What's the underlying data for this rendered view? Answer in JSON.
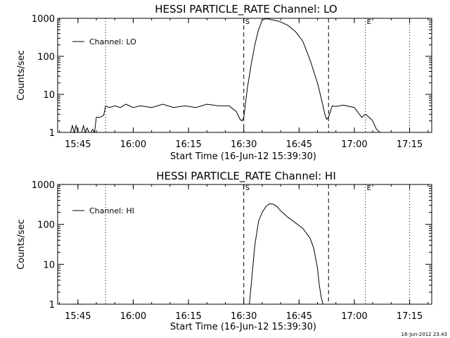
{
  "footer_timestamp": "16-Jun-2012 23:43",
  "chart_data": [
    {
      "type": "line",
      "title": "HESSI PARTICLE_RATE Channel: LO",
      "xlabel": "Start Time (16-Jun-12 15:39:30)",
      "ylabel": "Counts/sec",
      "yscale": "log",
      "ylim": [
        1,
        1000
      ],
      "xlim": [
        "15:39:30",
        "17:21:00"
      ],
      "xticks": [
        "15:45",
        "16:00",
        "16:15",
        "16:30",
        "16:45",
        "17:00",
        "17:15"
      ],
      "yticks": [
        "1",
        "10",
        "100",
        "1000"
      ],
      "legend": {
        "label": "Channel: LO",
        "position": "top-left"
      },
      "markers": [
        {
          "label": "S",
          "time": "16:30:00",
          "style": "dashed"
        },
        {
          "label": "",
          "time": "16:53:00",
          "style": "dashed"
        },
        {
          "label": "",
          "time": "15:52:30",
          "style": "dotted"
        },
        {
          "label": "E",
          "time": "17:03:00",
          "style": "dotted"
        },
        {
          "label": "",
          "time": "17:15:00",
          "style": "dotted"
        }
      ],
      "series": [
        {
          "name": "Channel: LO",
          "x": [
            "15:42:30",
            "15:43:00",
            "15:43:30",
            "15:44:00",
            "15:44:30",
            "15:45:00",
            "15:45:30",
            "15:46:00",
            "15:46:30",
            "15:47:00",
            "15:47:30",
            "15:48:00",
            "15:48:30",
            "15:49:00",
            "15:49:30",
            "15:50:00",
            "15:51:00",
            "15:52:00",
            "15:52:30",
            "15:53:30",
            "15:55:00",
            "15:56:30",
            "15:58:00",
            "16:00:00",
            "16:02:00",
            "16:05:00",
            "16:08:00",
            "16:11:00",
            "16:14:00",
            "16:17:00",
            "16:20:00",
            "16:23:00",
            "16:26:00",
            "16:28:00",
            "16:29:00",
            "16:29:30",
            "16:30:00",
            "16:31:00",
            "16:32:00",
            "16:33:00",
            "16:34:00",
            "16:35:00",
            "16:36:00",
            "16:37:00",
            "16:38:00",
            "16:39:00",
            "16:40:00",
            "16:42:00",
            "16:44:00",
            "16:46:00",
            "16:48:00",
            "16:49:00",
            "16:50:00",
            "16:51:00",
            "16:52:00",
            "16:52:30",
            "16:53:00",
            "16:54:00",
            "16:55:00",
            "16:57:00",
            "17:00:00",
            "17:02:00",
            "17:03:00",
            "17:04:00",
            "17:05:00",
            "17:06:00",
            "17:07:00",
            "17:08:00"
          ],
          "y": [
            1,
            1,
            1.5,
            1,
            1.5,
            1,
            1,
            1,
            1.5,
            1,
            1.3,
            1,
            1,
            1.2,
            1,
            2.5,
            2.5,
            2.8,
            5,
            4.5,
            5,
            4.5,
            5.5,
            4.5,
            5,
            4.5,
            5.5,
            4.5,
            5,
            4.5,
            5.5,
            5,
            5,
            3.5,
            2.2,
            2,
            2.5,
            15,
            60,
            200,
            500,
            900,
            980,
            950,
            900,
            860,
            800,
            650,
            450,
            250,
            80,
            40,
            20,
            8,
            3,
            2.2,
            2.5,
            5,
            4.8,
            5.2,
            4.5,
            2.5,
            3,
            2.5,
            2,
            1.2,
            1,
            1
          ]
        }
      ]
    },
    {
      "type": "line",
      "title": "HESSI PARTICLE_RATE Channel: HI",
      "xlabel": "Start Time (16-Jun-12 15:39:30)",
      "ylabel": "Counts/sec",
      "yscale": "log",
      "ylim": [
        1,
        1000
      ],
      "xlim": [
        "15:39:30",
        "17:21:00"
      ],
      "xticks": [
        "15:45",
        "16:00",
        "16:15",
        "16:30",
        "16:45",
        "17:00",
        "17:15"
      ],
      "yticks": [
        "1",
        "10",
        "100",
        "1000"
      ],
      "legend": {
        "label": "Channel: HI",
        "position": "top-left"
      },
      "markers": [
        {
          "label": "S",
          "time": "16:30:00",
          "style": "dashed"
        },
        {
          "label": "",
          "time": "16:53:00",
          "style": "dashed"
        },
        {
          "label": "",
          "time": "15:52:30",
          "style": "dotted"
        },
        {
          "label": "E",
          "time": "17:03:00",
          "style": "dotted"
        },
        {
          "label": "",
          "time": "17:15:00",
          "style": "dotted"
        }
      ],
      "series": [
        {
          "name": "Channel: HI",
          "x": [
            "16:31:30",
            "16:32:00",
            "16:33:00",
            "16:34:00",
            "16:35:00",
            "16:36:00",
            "16:37:00",
            "16:38:00",
            "16:39:00",
            "16:40:00",
            "16:42:00",
            "16:44:00",
            "16:46:00",
            "16:48:00",
            "16:49:00",
            "16:50:00",
            "16:50:30",
            "16:51:00",
            "16:51:30"
          ],
          "y": [
            1,
            3,
            30,
            120,
            200,
            280,
            330,
            320,
            280,
            220,
            150,
            110,
            80,
            45,
            25,
            8,
            3,
            1.5,
            1
          ]
        }
      ]
    }
  ]
}
